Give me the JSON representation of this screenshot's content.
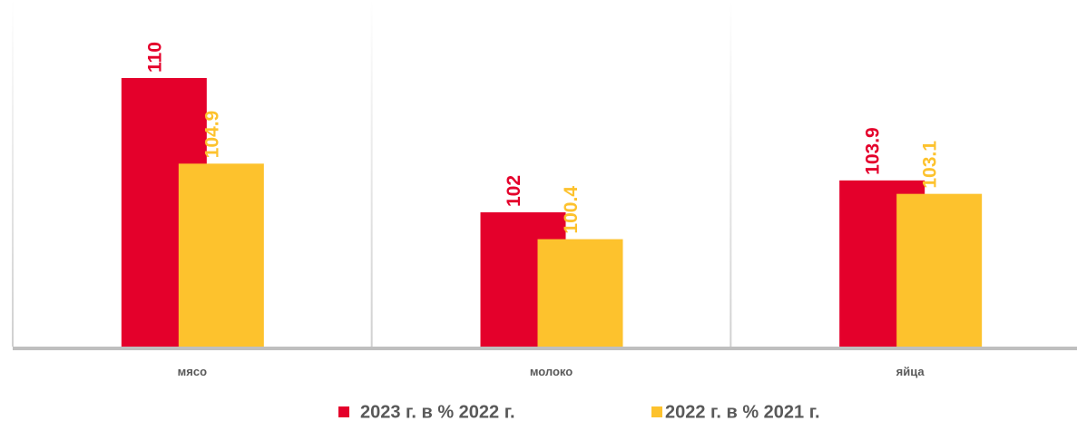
{
  "chart_data": {
    "type": "bar",
    "categories": [
      "мясо",
      "молоко",
      "яйца"
    ],
    "series": [
      {
        "name": "2023 г. в % 2022 г.",
        "color": "#e4002b",
        "values": [
          110,
          102,
          103.9
        ]
      },
      {
        "name": "2022 г. в % 2021 г.",
        "color": "#fdc22d",
        "values": [
          104.9,
          100.4,
          103.1
        ]
      }
    ],
    "ylim": [
      94,
      114
    ]
  }
}
